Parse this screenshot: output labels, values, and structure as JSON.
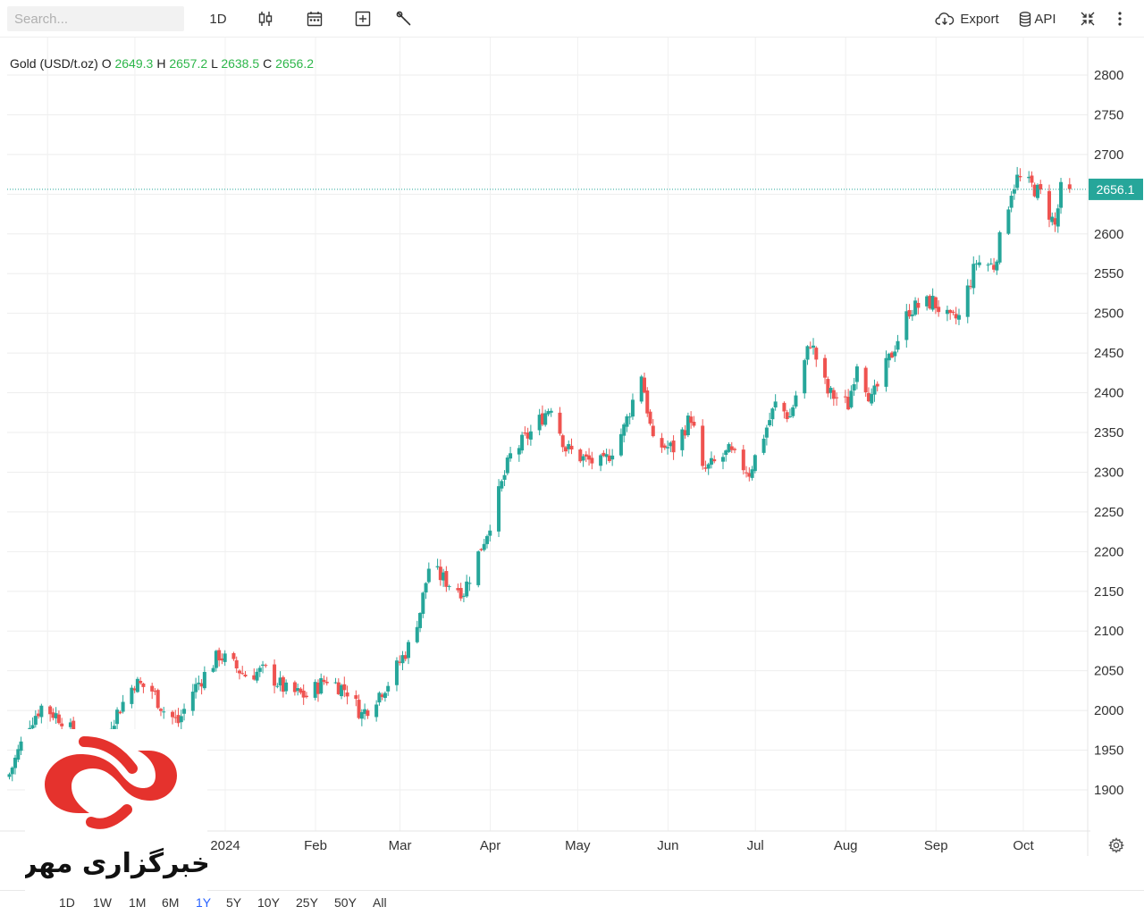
{
  "toolbar": {
    "search_placeholder": "Search...",
    "interval": "1D",
    "export_label": "Export",
    "api_label": "API",
    "icons": [
      "candles-icon",
      "calendar-icon",
      "add-indicator-icon",
      "tools-wrench-icon",
      "cloud-download-icon",
      "database-icon",
      "collapse-icon",
      "more-vertical-icon"
    ]
  },
  "legend": {
    "symbol": "Gold (USD/t.oz)",
    "o_label": "O",
    "o_value": "2649.3",
    "h_label": "H",
    "h_value": "2657.2",
    "l_label": "L",
    "l_value": "2638.5",
    "c_label": "C",
    "c_value": "2656.2"
  },
  "price_tag": "2656.1",
  "colors": {
    "up": "#26a69a",
    "down": "#ef5350",
    "legend_value": "#2db64a",
    "accent": "#2962ff",
    "logo_red": "#e5322d"
  },
  "range_buttons": [
    "1D",
    "1W",
    "1M",
    "6M",
    "1Y",
    "5Y",
    "10Y",
    "25Y",
    "50Y",
    "All"
  ],
  "active_range": "1Y",
  "logo_text": "خبرگزاری مهر",
  "chart_data": {
    "type": "candlestick",
    "title": "",
    "xlabel": "",
    "ylabel": "",
    "ylim": [
      1850,
      2830
    ],
    "y_ticks": [
      1900,
      1950,
      2000,
      2050,
      2100,
      2150,
      2200,
      2250,
      2300,
      2350,
      2400,
      2450,
      2500,
      2550,
      2600,
      2650,
      2700,
      2750,
      2800
    ],
    "x_tick_labels": [
      "2024",
      "Feb",
      "Mar",
      "Apr",
      "May",
      "Jun",
      "Jul",
      "Aug",
      "Sep",
      "Oct"
    ],
    "x_tick_dates": [
      "2024-01-01",
      "2024-02-01",
      "2024-03-01",
      "2024-04-01",
      "2024-05-01",
      "2024-06-01",
      "2024-07-01",
      "2024-08-01",
      "2024-09-01",
      "2024-10-01"
    ],
    "last_price": 2656.1,
    "grid": true,
    "close_anchors": [
      [
        "2023-10-16",
        1920
      ],
      [
        "2023-10-23",
        1985
      ],
      [
        "2023-10-27",
        2005
      ],
      [
        "2023-11-03",
        1990
      ],
      [
        "2023-11-13",
        1940
      ],
      [
        "2023-11-20",
        1985
      ],
      [
        "2023-11-28",
        2035
      ],
      [
        "2023-12-04",
        2025
      ],
      [
        "2023-12-08",
        2000
      ],
      [
        "2023-12-13",
        1985
      ],
      [
        "2023-12-18",
        2025
      ],
      [
        "2023-12-27",
        2070
      ],
      [
        "2024-01-05",
        2045
      ],
      [
        "2024-01-12",
        2050
      ],
      [
        "2024-01-19",
        2025
      ],
      [
        "2024-01-26",
        2018
      ],
      [
        "2024-02-02",
        2040
      ],
      [
        "2024-02-09",
        2025
      ],
      [
        "2024-02-14",
        1995
      ],
      [
        "2024-02-23",
        2035
      ],
      [
        "2024-03-01",
        2080
      ],
      [
        "2024-03-05",
        2125
      ],
      [
        "2024-03-08",
        2180
      ],
      [
        "2024-03-15",
        2160
      ],
      [
        "2024-03-20",
        2150
      ],
      [
        "2024-03-28",
        2225
      ],
      [
        "2024-04-05",
        2320
      ],
      [
        "2024-04-12",
        2350
      ],
      [
        "2024-04-19",
        2385
      ],
      [
        "2024-04-24",
        2330
      ],
      [
        "2024-05-01",
        2315
      ],
      [
        "2024-05-07",
        2310
      ],
      [
        "2024-05-14",
        2355
      ],
      [
        "2024-05-20",
        2425
      ],
      [
        "2024-05-24",
        2335
      ],
      [
        "2024-05-31",
        2330
      ],
      [
        "2024-06-06",
        2370
      ],
      [
        "2024-06-10",
        2300
      ],
      [
        "2024-06-19",
        2325
      ],
      [
        "2024-06-26",
        2300
      ],
      [
        "2024-07-05",
        2385
      ],
      [
        "2024-07-10",
        2370
      ],
      [
        "2024-07-17",
        2465
      ],
      [
        "2024-07-23",
        2400
      ],
      [
        "2024-07-30",
        2385
      ],
      [
        "2024-08-02",
        2440
      ],
      [
        "2024-08-07",
        2390
      ],
      [
        "2024-08-14",
        2450
      ],
      [
        "2024-08-20",
        2505
      ],
      [
        "2024-08-28",
        2515
      ],
      [
        "2024-09-03",
        2490
      ],
      [
        "2024-09-06",
        2495
      ],
      [
        "2024-09-12",
        2565
      ],
      [
        "2024-09-18",
        2560
      ],
      [
        "2024-09-24",
        2655
      ],
      [
        "2024-09-26",
        2670
      ],
      [
        "2024-10-01",
        2660
      ],
      [
        "2024-10-04",
        2650
      ],
      [
        "2024-10-09",
        2610
      ],
      [
        "2024-10-11",
        2655
      ],
      [
        "2024-10-14",
        2650
      ]
    ]
  }
}
